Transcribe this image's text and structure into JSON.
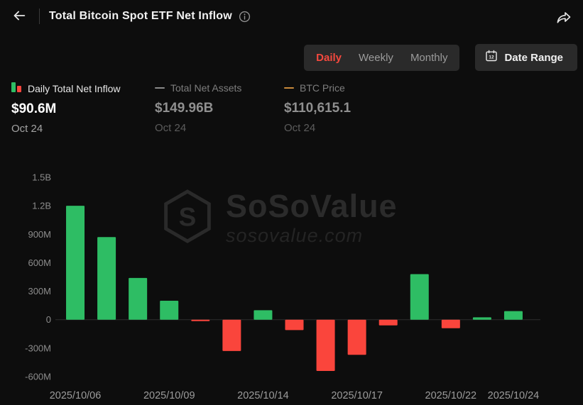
{
  "header": {
    "title": "Total Bitcoin Spot ETF Net Inflow"
  },
  "controls": {
    "tabs": [
      {
        "label": "Daily",
        "active": true
      },
      {
        "label": "Weekly",
        "active": false
      },
      {
        "label": "Monthly",
        "active": false
      }
    ],
    "date_range": "Date Range"
  },
  "legend": [
    {
      "name": "Daily Total Net Inflow",
      "value": "$90.6M",
      "date": "Oct 24"
    },
    {
      "name": "Total Net Assets",
      "value": "$149.96B",
      "date": "Oct 24"
    },
    {
      "name": "BTC Price",
      "value": "$110,615.1",
      "date": "Oct 24"
    }
  ],
  "watermark": {
    "brand": "SoSoValue",
    "domain": "sosovalue.com"
  },
  "colors": {
    "positive_bar": "#2ebd64",
    "negative_bar": "#fa453c",
    "accent": "#f4493e",
    "axis_text": "#8c8c8c",
    "x_axis_text": "#9c9c9c",
    "zero_line": "#2e2e2e",
    "assets_dash": "#8a8a8a",
    "btc_dash": "#c98a3b"
  },
  "chart_data": {
    "type": "bar",
    "series_name": "Daily Total Net Inflow",
    "unit": "USD millions",
    "values_millions": [
      1200,
      870,
      440,
      200,
      -15,
      -330,
      100,
      -110,
      -540,
      -370,
      -60,
      480,
      -90,
      25,
      90.6
    ],
    "y_ticks": [
      {
        "value": 1500,
        "label": "1.5B"
      },
      {
        "value": 1200,
        "label": "1.2B"
      },
      {
        "value": 900,
        "label": "900M"
      },
      {
        "value": 600,
        "label": "600M"
      },
      {
        "value": 300,
        "label": "300M"
      },
      {
        "value": 0,
        "label": "0"
      },
      {
        "value": -300,
        "label": "-300M"
      },
      {
        "value": -600,
        "label": "-600M"
      }
    ],
    "x_ticks": [
      {
        "bar_index": 0,
        "label": "2025/10/06"
      },
      {
        "bar_index": 3,
        "label": "2025/10/09"
      },
      {
        "bar_index": 6,
        "label": "2025/10/14"
      },
      {
        "bar_index": 9,
        "label": "2025/10/17"
      },
      {
        "bar_index": 12,
        "label": "2025/10/22"
      },
      {
        "bar_index": 14,
        "label": "2025/10/24"
      }
    ],
    "ylim": [
      -660,
      1560
    ],
    "grid": false,
    "legend_position": "top-left"
  }
}
